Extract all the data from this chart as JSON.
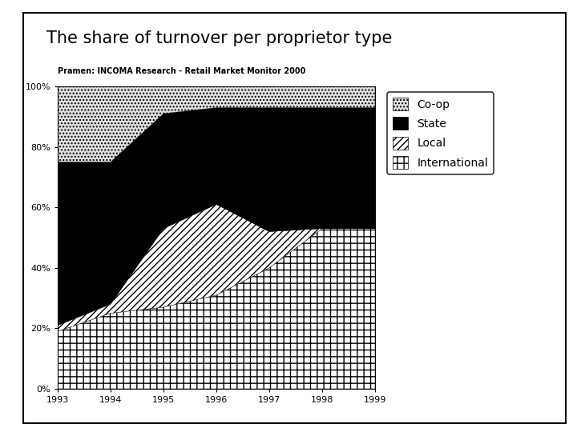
{
  "title": "The share of turnover per proprietor type",
  "subtitle": "Pramen: INCOMA Research - Retail Market Monitor 2000",
  "years": [
    1993,
    1994,
    1995,
    1996,
    1997,
    1998,
    1999
  ],
  "stack_order": [
    "International",
    "Local",
    "State",
    "Co-op"
  ],
  "data": {
    "International": [
      19,
      25,
      27,
      31,
      40,
      53,
      53
    ],
    "Local": [
      2,
      3,
      26,
      30,
      12,
      0,
      0
    ],
    "State": [
      54,
      47,
      38,
      32,
      41,
      40,
      40
    ],
    "Co-op": [
      25,
      25,
      9,
      7,
      7,
      7,
      7
    ]
  },
  "facecolors": {
    "International": "#ffffff",
    "Local": "#ffffff",
    "State": "#000000",
    "Co-op": "#e0e0e0"
  },
  "hatches": {
    "International": "++",
    "Local": "////",
    "State": "",
    "Co-op": "...."
  },
  "legend_order": [
    "Co-op",
    "State",
    "Local",
    "International"
  ],
  "ylim": [
    0,
    100
  ],
  "xlim": [
    1993,
    1999
  ],
  "yticks": [
    0,
    20,
    40,
    60,
    80,
    100
  ],
  "ytick_labels": [
    "0%",
    "20%",
    "40%",
    "60%",
    "80%",
    "100%"
  ],
  "background_color": "#ffffff"
}
